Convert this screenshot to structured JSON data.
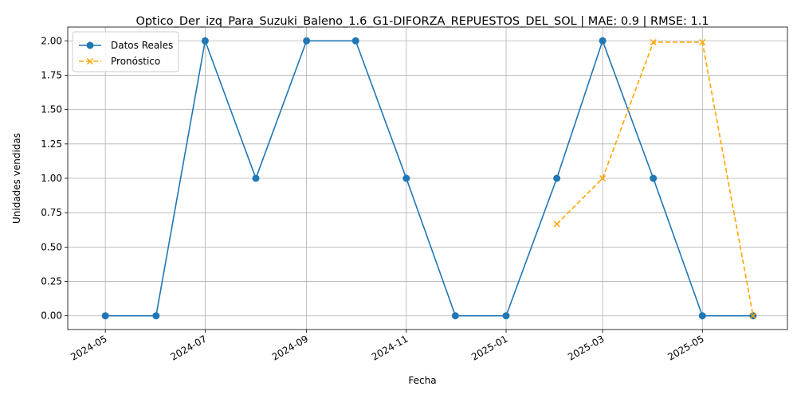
{
  "chart_data": {
    "type": "line",
    "title": "Optico_Der_izq_Para_Suzuki_Baleno_1.6_G1-DIFORZA_REPUESTOS_DEL_SOL | MAE: 0.9 | RMSE: 1.1",
    "xlabel": "Fecha",
    "ylabel": "Unidades vendidas",
    "xlim": [
      "2024-04-08",
      "2025-06-22"
    ],
    "ylim": [
      -0.1,
      2.1
    ],
    "grid": true,
    "legend_position": "top-left",
    "x_ticks": [
      "2024-05",
      "2024-07",
      "2024-09",
      "2024-11",
      "2025-01",
      "2025-03",
      "2025-05"
    ],
    "y_ticks": [
      "0.00",
      "0.25",
      "0.50",
      "0.75",
      "1.00",
      "1.25",
      "1.50",
      "1.75",
      "2.00"
    ],
    "series": [
      {
        "name": "Datos Reales",
        "color": "#1f77b4",
        "marker": "circle",
        "line_style": "solid",
        "x": [
          "2024-05-01",
          "2024-06-01",
          "2024-07-01",
          "2024-08-01",
          "2024-09-01",
          "2024-10-01",
          "2024-11-01",
          "2024-12-01",
          "2025-01-01",
          "2025-02-01",
          "2025-03-01",
          "2025-04-01",
          "2025-05-01",
          "2025-06-01"
        ],
        "y": [
          0,
          0,
          2,
          1,
          2,
          2,
          1,
          0,
          0,
          1,
          2,
          1,
          0,
          0
        ]
      },
      {
        "name": "Pronóstico",
        "color": "#ffa500",
        "marker": "x",
        "line_style": "dashed",
        "x": [
          "2025-02-01",
          "2025-03-01",
          "2025-04-01",
          "2025-05-01",
          "2025-06-01"
        ],
        "y": [
          0.667,
          1.0,
          1.99,
          1.99,
          0
        ]
      }
    ]
  }
}
